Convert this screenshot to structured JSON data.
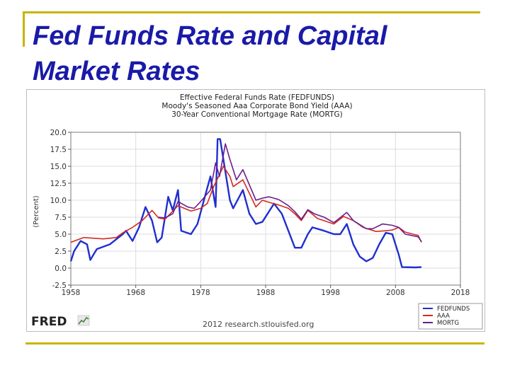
{
  "slide": {
    "title": "Fed Funds Rate and Capital Market Rates"
  },
  "chart_data": {
    "type": "line",
    "title_lines": [
      "Effective Federal Funds Rate (FEDFUNDS)",
      "Moody's Seasoned Aaa Corporate Bond Yield (AAA)",
      "30-Year Conventional Mortgage Rate (MORTG)"
    ],
    "xlabel": "",
    "ylabel": "(Percent)",
    "xlim": [
      1958,
      2018
    ],
    "ylim": [
      -2.5,
      20.0
    ],
    "x_ticks": [
      1958,
      1968,
      1978,
      1988,
      1998,
      2008,
      2018
    ],
    "y_ticks": [
      -2.5,
      0.0,
      2.5,
      5.0,
      7.5,
      10.0,
      12.5,
      15.0,
      17.5,
      20.0
    ],
    "y_tick_labels": [
      "-2.5",
      "0.0",
      "2.5",
      "5.0",
      "7.5",
      "10.0",
      "12.5",
      "15.0",
      "17.5",
      "20.0"
    ],
    "grid": true,
    "legend_position": "bottom-right",
    "series": [
      {
        "name": "FEDFUNDS",
        "color": "#1f2fd0",
        "x": [
          1958,
          1958.5,
          1959.5,
          1960.5,
          1961,
          1961.5,
          1962,
          1964,
          1966,
          1966.5,
          1967.5,
          1968.5,
          1969.5,
          1970.5,
          1971.3,
          1972,
          1973,
          1973.7,
          1974.5,
          1975,
          1976.5,
          1977.5,
          1978.5,
          1979.5,
          1980.3,
          1980.6,
          1981,
          1981.5,
          1982.5,
          1983,
          1984.5,
          1985.5,
          1986.5,
          1987.5,
          1989.3,
          1990.5,
          1991.5,
          1992.5,
          1993.5,
          1994.5,
          1995.2,
          1997,
          1998.5,
          1999.5,
          2000.5,
          2001.5,
          2002.5,
          2003.5,
          2004.5,
          2005.5,
          2006.5,
          2007.5,
          2008.5,
          2009,
          2011,
          2012
        ],
        "y": [
          1.0,
          2.5,
          4.0,
          3.5,
          1.2,
          2.0,
          2.8,
          3.5,
          5.0,
          5.5,
          4.0,
          6.0,
          9.0,
          7.0,
          3.8,
          4.5,
          10.5,
          8.5,
          11.5,
          5.5,
          5.0,
          6.5,
          10.0,
          13.5,
          9.0,
          19.0,
          19.0,
          16.0,
          10.0,
          8.8,
          11.5,
          8.0,
          6.5,
          6.8,
          9.5,
          8.0,
          5.5,
          3.0,
          3.0,
          5.0,
          6.0,
          5.5,
          5.0,
          5.0,
          6.5,
          3.5,
          1.7,
          1.0,
          1.5,
          3.5,
          5.2,
          5.0,
          2.0,
          0.15,
          0.1,
          0.15
        ]
      },
      {
        "name": "AAA",
        "color": "#d42a1e",
        "x": [
          1958,
          1960,
          1963,
          1965,
          1966,
          1967.5,
          1969,
          1970.5,
          1971.5,
          1972.5,
          1974.5,
          1976.5,
          1978,
          1979,
          1980,
          1981.5,
          1982.5,
          1983,
          1984.5,
          1986.5,
          1987.5,
          1988.5,
          1990,
          1991.5,
          1992.5,
          1993.5,
          1994.5,
          1996,
          1998.5,
          2000,
          2001.5,
          2003,
          2005,
          2006.5,
          2007.5,
          2008.5,
          2009.5,
          2011.5,
          2012
        ],
        "y": [
          3.8,
          4.5,
          4.3,
          4.5,
          5.2,
          6.0,
          7.0,
          8.5,
          7.4,
          7.2,
          9.2,
          8.4,
          8.8,
          9.5,
          12.0,
          15.0,
          13.5,
          12.0,
          13.0,
          9.0,
          10.0,
          9.7,
          9.3,
          8.8,
          8.0,
          7.0,
          8.5,
          7.3,
          6.5,
          7.6,
          7.0,
          6.0,
          5.4,
          5.5,
          5.6,
          6.0,
          5.3,
          4.8,
          3.8
        ]
      },
      {
        "name": "MORTG",
        "color": "#6a1e8e",
        "x": [
          1971.5,
          1972.5,
          1973.7,
          1974.5,
          1976,
          1977,
          1978,
          1979.5,
          1980.3,
          1980.9,
          1981.8,
          1982.5,
          1983.5,
          1984.5,
          1986.5,
          1987.5,
          1988.5,
          1990,
          1991.5,
          1992.5,
          1993.5,
          1994.5,
          1995.5,
          1997,
          1998.5,
          2000.5,
          2001.5,
          2003.5,
          2004.5,
          2006,
          2007.5,
          2008.5,
          2009.5,
          2011.5,
          2012
        ],
        "y": [
          7.5,
          7.4,
          8.0,
          9.8,
          9.0,
          8.8,
          9.8,
          11.5,
          15.5,
          13.5,
          18.3,
          16.0,
          13.0,
          14.5,
          10.0,
          10.3,
          10.5,
          10.1,
          9.2,
          8.3,
          7.2,
          8.6,
          8.0,
          7.5,
          6.7,
          8.2,
          7.0,
          5.8,
          5.8,
          6.5,
          6.3,
          6.0,
          5.0,
          4.6,
          3.9
        ]
      }
    ],
    "source_text": "2012 research.stlouisfed.org",
    "logo_text": "FRED"
  }
}
